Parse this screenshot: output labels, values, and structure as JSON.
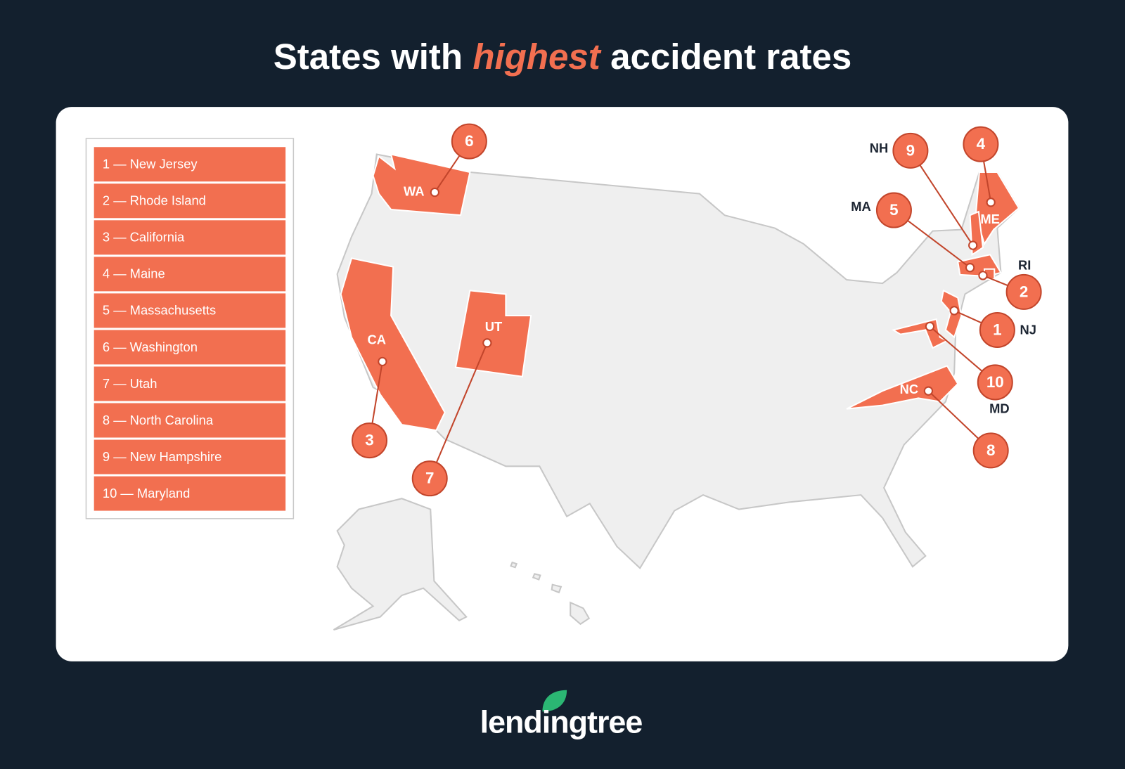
{
  "title": {
    "before": "States with",
    "emphasis": "highest",
    "after": "accident rates"
  },
  "legend": [
    "1 — New Jersey",
    "2 — Rhode Island",
    "3 — California",
    "4 — Maine",
    "5 — Massachusetts",
    "6 — Washington",
    "7 — Utah",
    "8 — North Carolina",
    "9 — New Hampshire",
    "10 — Maryland"
  ],
  "map_labels": [
    {
      "abbr": "NJ",
      "rank": 1
    },
    {
      "abbr": "RI",
      "rank": 2
    },
    {
      "abbr": "CA",
      "rank": 3
    },
    {
      "abbr": "ME",
      "rank": 4
    },
    {
      "abbr": "MA",
      "rank": 5
    },
    {
      "abbr": "WA",
      "rank": 6
    },
    {
      "abbr": "UT",
      "rank": 7
    },
    {
      "abbr": "NC",
      "rank": 8
    },
    {
      "abbr": "NH",
      "rank": 9
    },
    {
      "abbr": "MD",
      "rank": 10
    }
  ],
  "logo": "lendingtree"
}
